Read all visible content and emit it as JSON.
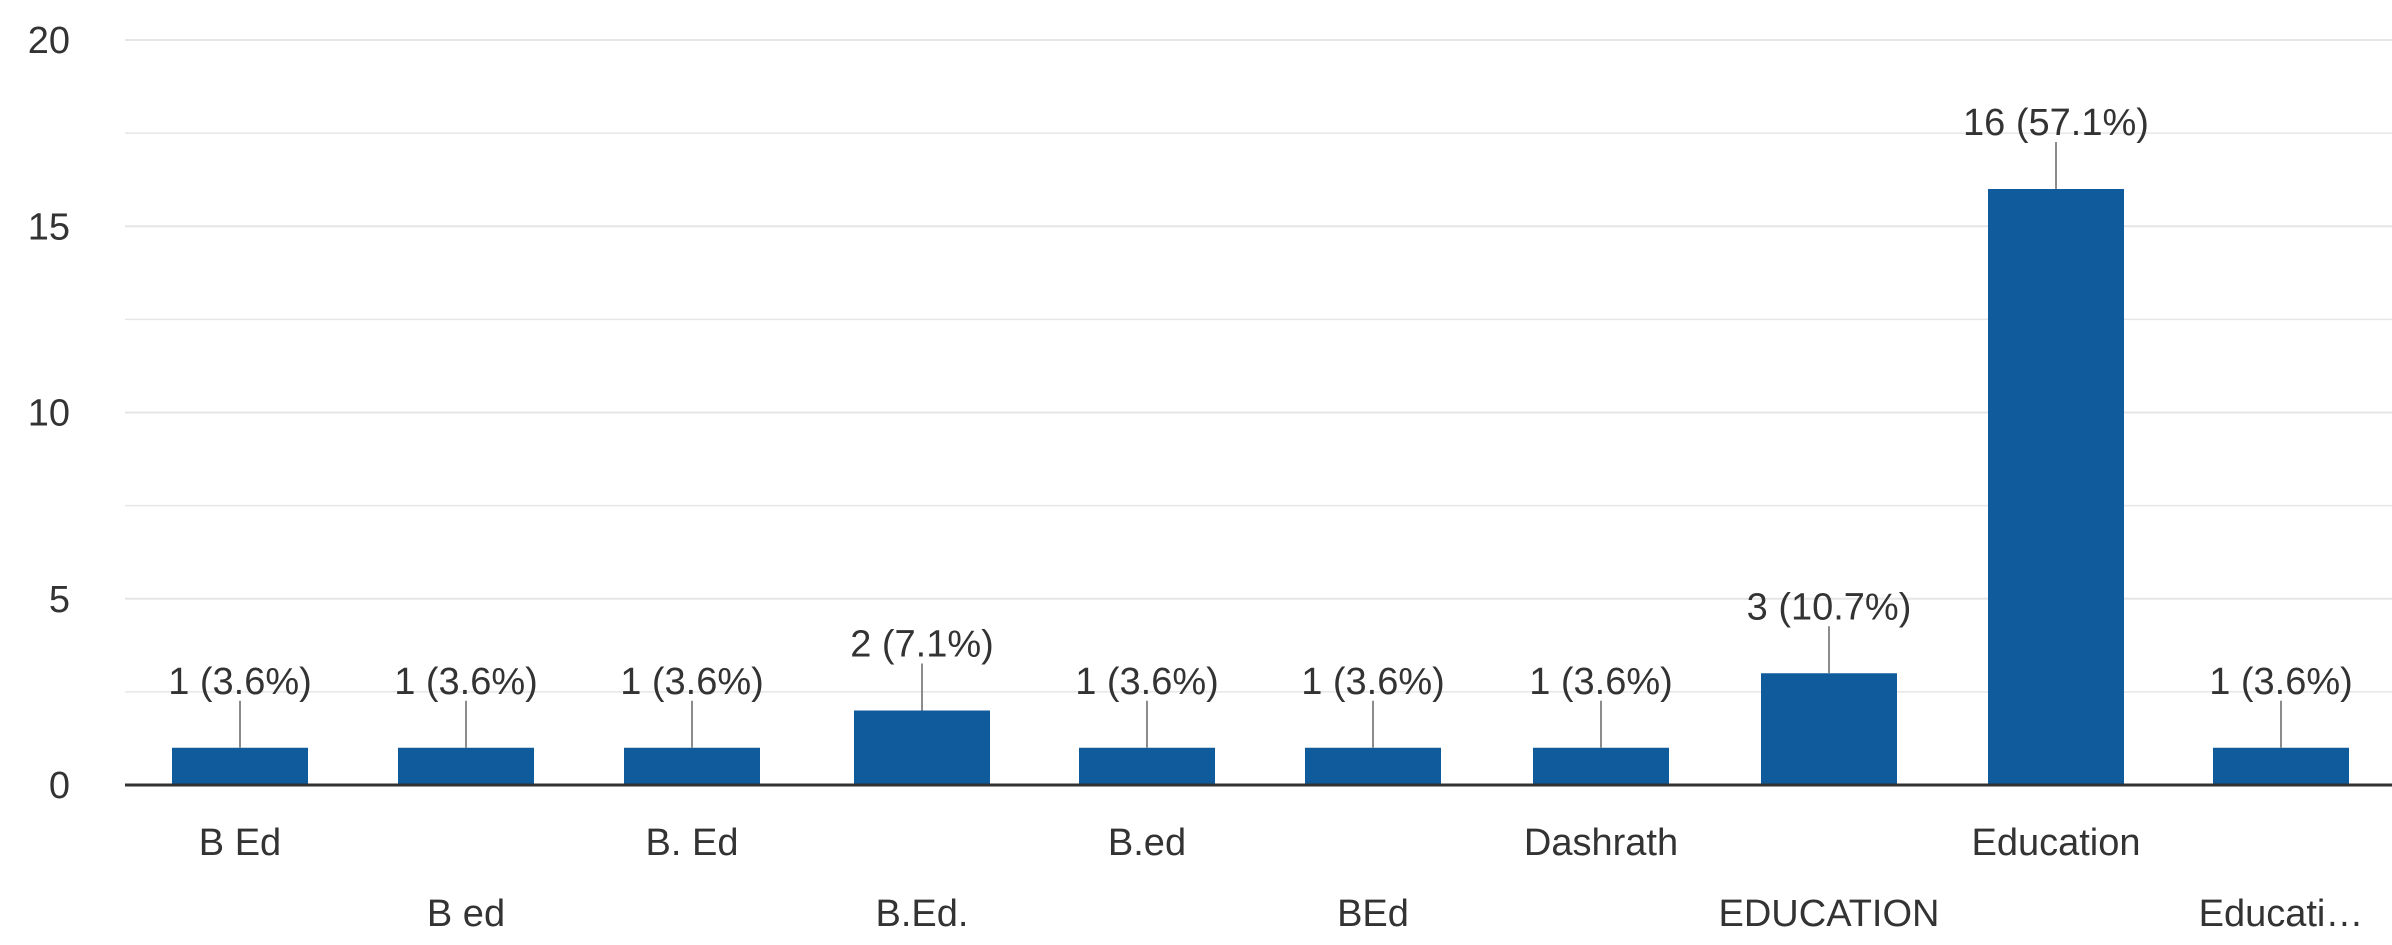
{
  "chart_data": {
    "type": "bar",
    "title": "",
    "xlabel": "",
    "ylabel": "",
    "ylim": [
      0,
      20
    ],
    "y_ticks": [
      0,
      5,
      10,
      15,
      20
    ],
    "grid": true,
    "legend": "none",
    "categories": [
      "B Ed",
      "B ed",
      "B. Ed",
      "B.Ed.",
      "B.ed",
      "BEd",
      "Dashrath",
      "EDUCATION",
      "Education",
      "Educati…"
    ],
    "values": [
      1,
      1,
      1,
      2,
      1,
      1,
      1,
      3,
      16,
      1
    ],
    "data_labels": [
      "1 (3.6%)",
      "1 (3.6%)",
      "1 (3.6%)",
      "2 (7.1%)",
      "1 (3.6%)",
      "1 (3.6%)",
      "1 (3.6%)",
      "3 (10.7%)",
      "16 (57.1%)",
      "1 (3.6%)"
    ]
  },
  "colors": {
    "bar": "#0f5b9c",
    "grid": "#e6e6e6",
    "axis": "#333333",
    "text": "#333333",
    "leader": "#8c8c8c"
  }
}
